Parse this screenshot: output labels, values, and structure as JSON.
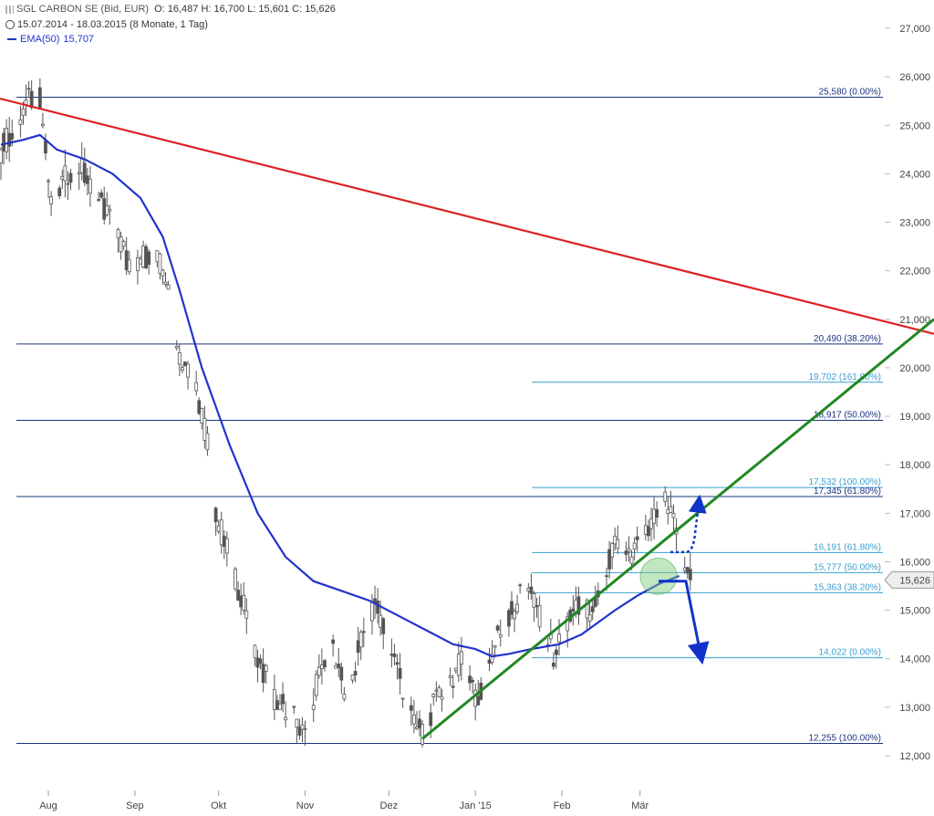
{
  "header": {
    "title": "SGL CARBON SE (Bid, EUR)",
    "ohlc": "O: 16,487  H: 16,700  L: 15,601  C: 15,626",
    "range": "15.07.2014 - 18.03.2015 (8 Monate, 1 Tag)",
    "ema_label": "EMA(50)",
    "ema_value": "15,707"
  },
  "colors": {
    "candle": "#555555",
    "level_dark": "#1a3580",
    "level_light": "#3a9fd0",
    "ema": "#2233cc",
    "downtrend": "#dd2222",
    "uptrend": "#228822",
    "arrow": "#1133cc"
  },
  "chart_data": {
    "type": "candlestick",
    "ylim": [
      11.9,
      27.5
    ],
    "y_ticks": [
      "12,000",
      "13,000",
      "14,000",
      "15,000",
      "16,000",
      "17,000",
      "18,000",
      "19,000",
      "20,000",
      "21,000",
      "22,000",
      "23,000",
      "24,000",
      "25,000",
      "26,000",
      "27,000"
    ],
    "x_labels": [
      {
        "label": "Aug",
        "day": 17
      },
      {
        "label": "Sep",
        "day": 48
      },
      {
        "label": "Okt",
        "day": 78
      },
      {
        "label": "Nov",
        "day": 109
      },
      {
        "label": "Dez",
        "day": 139
      },
      {
        "label": "Jan '15",
        "day": 170
      },
      {
        "label": "Feb",
        "day": 201
      },
      {
        "label": "Mär",
        "day": 229
      }
    ],
    "last_price": "15,626",
    "levels": [
      {
        "value": 25.58,
        "label": "25,580 (0.00%)",
        "style": "dark",
        "from_day": 0
      },
      {
        "value": 20.49,
        "label": "20,490 (38.20%)",
        "style": "dark",
        "from_day": 0
      },
      {
        "value": 19.702,
        "label": "19,702 (161.80%)",
        "style": "light",
        "from_day": 200
      },
      {
        "value": 18.917,
        "label": "18,917 (50.00%)",
        "style": "dark",
        "from_day": 0
      },
      {
        "value": 17.532,
        "label": "17,532 (100.00%)",
        "style": "light",
        "from_day": 200
      },
      {
        "value": 17.345,
        "label": "17,345 (61.80%)",
        "style": "dark",
        "from_day": 0
      },
      {
        "value": 16.191,
        "label": "16,191 (61.80%)",
        "style": "light",
        "from_day": 200
      },
      {
        "value": 15.777,
        "label": "15,777 (50.00%)",
        "style": "light",
        "from_day": 200
      },
      {
        "value": 15.363,
        "label": "15,363 (38.20%)",
        "style": "light",
        "from_day": 200
      },
      {
        "value": 14.022,
        "label": "14,022 (0.00%)",
        "style": "light",
        "from_day": 200
      },
      {
        "value": 12.255,
        "label": "12,255 (100.00%)",
        "style": "dark",
        "from_day": 0
      }
    ],
    "anchors": [
      [
        0,
        24.5
      ],
      [
        5,
        25.0
      ],
      [
        10,
        25.5
      ],
      [
        14,
        25.6
      ],
      [
        18,
        23.3
      ],
      [
        22,
        23.8
      ],
      [
        27,
        24.3
      ],
      [
        33,
        23.6
      ],
      [
        40,
        23.0
      ],
      [
        46,
        22.1
      ],
      [
        54,
        22.4
      ],
      [
        60,
        21.8
      ],
      [
        64,
        20.3
      ],
      [
        70,
        19.6
      ],
      [
        75,
        18.2
      ],
      [
        77,
        17.0
      ],
      [
        80,
        16.4
      ],
      [
        86,
        15.3
      ],
      [
        92,
        14.0
      ],
      [
        98,
        13.2
      ],
      [
        105,
        12.8
      ],
      [
        109,
        12.3
      ],
      [
        113,
        13.5
      ],
      [
        118,
        14.3
      ],
      [
        124,
        13.2
      ],
      [
        130,
        14.6
      ],
      [
        134,
        15.2
      ],
      [
        139,
        14.3
      ],
      [
        143,
        13.6
      ],
      [
        148,
        12.6
      ],
      [
        151,
        12.5
      ],
      [
        155,
        13.0
      ],
      [
        160,
        13.5
      ],
      [
        166,
        14.0
      ],
      [
        171,
        13.1
      ],
      [
        177,
        14.3
      ],
      [
        183,
        15.0
      ],
      [
        189,
        15.6
      ],
      [
        194,
        14.7
      ],
      [
        198,
        14.1
      ],
      [
        202,
        14.5
      ],
      [
        206,
        15.1
      ],
      [
        212,
        14.9
      ],
      [
        216,
        15.8
      ],
      [
        220,
        16.3
      ],
      [
        226,
        16.2
      ],
      [
        232,
        16.6
      ],
      [
        237,
        17.3
      ],
      [
        241,
        16.8
      ],
      [
        245,
        15.9
      ],
      [
        247,
        15.6
      ]
    ],
    "ema_points": [
      [
        0,
        24.6
      ],
      [
        8,
        24.7
      ],
      [
        14,
        24.8
      ],
      [
        20,
        24.5
      ],
      [
        30,
        24.3
      ],
      [
        40,
        24.0
      ],
      [
        50,
        23.5
      ],
      [
        58,
        22.7
      ],
      [
        64,
        21.6
      ],
      [
        72,
        20.0
      ],
      [
        82,
        18.4
      ],
      [
        92,
        17.0
      ],
      [
        102,
        16.1
      ],
      [
        112,
        15.6
      ],
      [
        122,
        15.4
      ],
      [
        132,
        15.2
      ],
      [
        142,
        14.9
      ],
      [
        152,
        14.6
      ],
      [
        162,
        14.3
      ],
      [
        170,
        14.2
      ],
      [
        176,
        14.05
      ],
      [
        182,
        14.1
      ],
      [
        190,
        14.2
      ],
      [
        200,
        14.3
      ],
      [
        208,
        14.5
      ],
      [
        214,
        14.75
      ],
      [
        220,
        15.0
      ],
      [
        228,
        15.3
      ],
      [
        236,
        15.55
      ],
      [
        243,
        15.707
      ]
    ],
    "down_trendline": [
      [
        0,
        25.55
      ],
      [
        1024,
        20.7
      ]
    ],
    "up_trendline": [
      [
        463,
        12.35
      ],
      [
        1024,
        21.0
      ]
    ]
  }
}
